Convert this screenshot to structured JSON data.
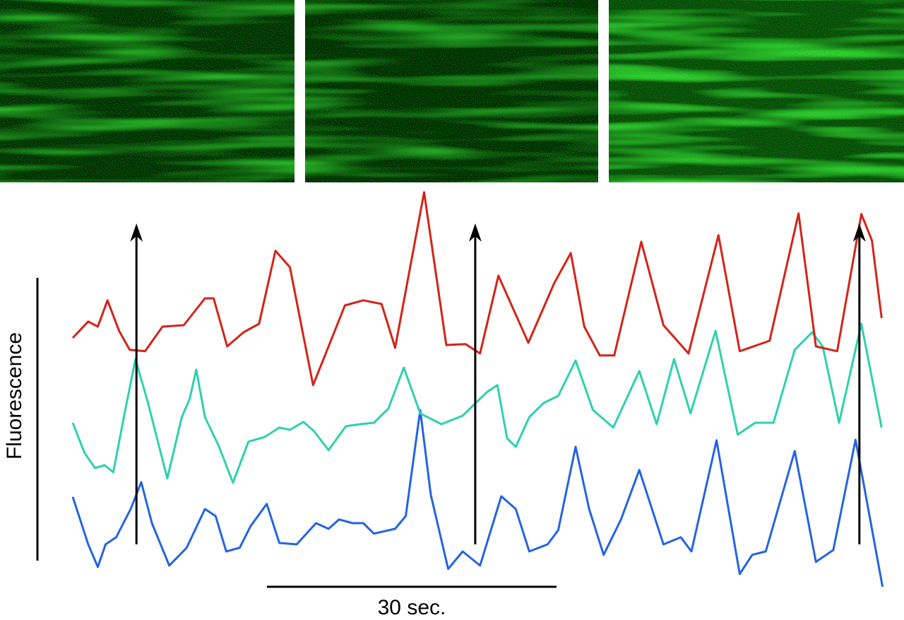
{
  "chart_data": {
    "type": "line",
    "y_label": "Fluorescence",
    "xlim": [
      0,
      84
    ],
    "ylim": [
      0,
      150
    ],
    "x_scalebar": {
      "value": 30,
      "label": "30 sec."
    },
    "arrows": [
      6.6,
      41.7,
      81.5
    ],
    "series": [
      {
        "color": "#d42318",
        "x": [
          0,
          1.6,
          2.6,
          3.6,
          4.8,
          5.9,
          7.5,
          9.3,
          11.5,
          13.7,
          14.6,
          16.0,
          17.7,
          19.3,
          21.0,
          22.5,
          24.9,
          28.2,
          30.1,
          32.0,
          33.4,
          36.4,
          38.7,
          40.7,
          42.2,
          44.1,
          47.2,
          49.9,
          51.6,
          53.0,
          54.6,
          56.1,
          58.9,
          61.2,
          63.8,
          66.9,
          69.1,
          72.2,
          75.2,
          77.0,
          79.2,
          81.7,
          82.8,
          83.8
        ],
        "values": [
          90.5,
          96.3,
          94.5,
          103.8,
          93,
          86.3,
          85.8,
          94.5,
          95,
          104.5,
          104.5,
          87.5,
          92.5,
          95.5,
          121.3,
          115.5,
          73.8,
          102,
          103.8,
          102.5,
          87,
          142,
          88,
          88.3,
          85,
          112.5,
          88.8,
          110,
          120.5,
          94.5,
          84.3,
          84.3,
          124.5,
          95,
          85,
          126.8,
          85.8,
          89.5,
          134.5,
          87.5,
          85.8,
          134.3,
          125,
          97.5
        ]
      },
      {
        "color": "#2ed1ae",
        "x": [
          0,
          1.2,
          2.3,
          3.3,
          4.2,
          5.3,
          6.5,
          7.8,
          9.8,
          11.3,
          12.1,
          12.8,
          13.7,
          15.1,
          16.6,
          18.2,
          19.9,
          21.4,
          22.5,
          23.9,
          25.0,
          26.5,
          28.3,
          29.8,
          31.2,
          32.7,
          34.3,
          36.0,
          38.2,
          40.4,
          42.9,
          44.0,
          45.0,
          45.9,
          47.3,
          48.8,
          50.3,
          52.1,
          53.9,
          56.0,
          58.7,
          60.5,
          62.3,
          64.0,
          66.6,
          68.9,
          70.7,
          72.6,
          74.8,
          76.6,
          77.7,
          79.4,
          81.7,
          83.8
        ],
        "values": [
          60.5,
          50,
          44.5,
          45.5,
          43,
          62.5,
          83,
          67.5,
          40.8,
          62.5,
          68.8,
          79.3,
          62.5,
          52.5,
          39.3,
          53.8,
          55.5,
          58.8,
          58,
          60.8,
          57.5,
          50.8,
          59.3,
          60,
          60.5,
          65.5,
          80,
          63.8,
          60,
          63,
          71.3,
          73.8,
          55,
          52,
          62.5,
          67.5,
          70,
          82.5,
          65,
          58.8,
          78.8,
          60,
          83,
          63.8,
          93,
          56.3,
          60.5,
          60.5,
          86.3,
          92.5,
          87.5,
          60.5,
          95.5,
          58.8
        ]
      },
      {
        "color": "#2463e3",
        "x": [
          0,
          1.6,
          2.6,
          3.4,
          4.5,
          6.0,
          7.1,
          8.2,
          10.0,
          11.8,
          13.7,
          14.8,
          15.9,
          17.3,
          18.4,
          20.1,
          21.4,
          23.2,
          25.2,
          26.5,
          27.6,
          29.0,
          30.1,
          31.2,
          33.4,
          34.5,
          36.0,
          37.1,
          38.9,
          40.4,
          42.2,
          44.4,
          45.9,
          47.3,
          49.2,
          50.3,
          52.1,
          53.5,
          55.0,
          56.8,
          58.7,
          61.2,
          63.0,
          64.1,
          66.7,
          69.1,
          70.4,
          71.8,
          74.8,
          77.0,
          78.8,
          81.1,
          83.9
        ],
        "values": [
          34.3,
          17.5,
          9.5,
          17.5,
          20,
          30,
          39.5,
          25,
          10,
          16.3,
          30,
          27.5,
          15,
          16.3,
          23.8,
          31.8,
          18,
          17.5,
          25,
          23,
          26.3,
          25,
          25,
          21.3,
          23,
          27.5,
          65,
          35,
          8.8,
          15,
          10,
          34.5,
          30,
          15,
          17.5,
          22.5,
          52,
          30,
          13.8,
          26.3,
          43.8,
          17.5,
          20,
          15,
          54.3,
          7,
          13.8,
          15,
          50.5,
          11.3,
          15.5,
          54.5,
          2.5
        ]
      }
    ]
  }
}
